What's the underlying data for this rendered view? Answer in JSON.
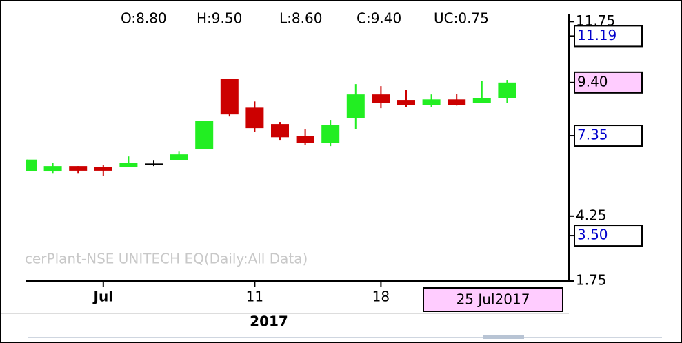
{
  "chart_data": {
    "type": "candlestick",
    "header": [
      "O:8.80",
      "H:9.50",
      "L:8.60",
      "C:9.40",
      "UC:0.75"
    ],
    "watermark": "cerPlant-NSE UNITECH EQ(Daily:All Data)",
    "categories": [
      null,
      null,
      null,
      "Jul",
      null,
      null,
      null,
      null,
      null,
      "11",
      null,
      null,
      null,
      null,
      "18",
      null,
      null,
      null,
      null,
      null
    ],
    "year_label": "2017",
    "cursor_label": "25 Jul2017",
    "open": [
      5.98,
      5.97,
      6.18,
      6.15,
      6.13,
      6.28,
      6.42,
      6.82,
      9.55,
      8.43,
      7.8,
      7.35,
      7.08,
      8.04,
      8.94,
      8.73,
      8.54,
      8.75,
      8.62,
      8.8
    ],
    "high": [
      6.43,
      6.29,
      6.18,
      6.23,
      6.55,
      6.39,
      6.76,
      7.93,
      9.55,
      8.67,
      7.88,
      7.59,
      7.96,
      9.34,
      9.26,
      9.12,
      8.94,
      8.96,
      9.47,
      9.5
    ],
    "low": [
      5.98,
      5.91,
      5.91,
      5.81,
      6.13,
      6.18,
      6.42,
      6.82,
      8.09,
      7.51,
      7.19,
      6.98,
      6.95,
      7.61,
      8.41,
      8.46,
      8.46,
      8.51,
      8.62,
      8.6
    ],
    "close": [
      6.43,
      6.18,
      6.0,
      6.0,
      6.31,
      6.28,
      6.63,
      7.93,
      8.17,
      7.64,
      7.29,
      7.08,
      7.77,
      8.94,
      8.62,
      8.54,
      8.75,
      8.54,
      8.81,
      9.4
    ],
    "up_color": "#22ee22",
    "down_color": "#cc0000",
    "flat_color": "#000000",
    "ylim": [
      1.75,
      12.05
    ],
    "yticks": [
      11.75,
      4.25,
      1.75
    ],
    "price_markers": [
      {
        "value": 11.19,
        "label": "11.19",
        "color": "#0000cc",
        "background": "#ffffff"
      },
      {
        "value": 9.4,
        "label": "9.40",
        "color": "#000000",
        "background": "#ffccff"
      },
      {
        "value": 7.35,
        "label": "7.35",
        "color": "#0000cc",
        "background": "#ffffff"
      },
      {
        "value": 3.5,
        "label": "3.50",
        "color": "#0000cc",
        "background": "#ffffff"
      }
    ]
  }
}
